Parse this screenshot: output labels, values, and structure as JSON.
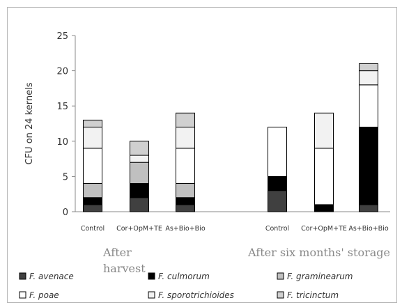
{
  "chart_data": {
    "type": "bar",
    "stacked": true,
    "ylabel": "CFU on 24 kernels",
    "ylim": [
      0,
      25
    ],
    "yticks": [
      0,
      5,
      10,
      15,
      20,
      25
    ],
    "grid": false,
    "legend_position": "bottom",
    "categories": [
      "Control",
      "Cor+OpM+TE",
      "As+Bio+Bio",
      "Control",
      "Cor+OpM+TE",
      "As+Bio+Bio"
    ],
    "groups": [
      {
        "label": "After harvest",
        "categories": [
          "Control",
          "Cor+OpM+TE",
          "As+Bio+Bio"
        ]
      },
      {
        "label": "After six months' storage",
        "categories": [
          "Control",
          "Cor+OpM+TE",
          "As+Bio+Bio"
        ]
      }
    ],
    "series": [
      {
        "name": "F. avenace",
        "color": "#404040",
        "values": [
          1,
          2,
          1,
          3,
          0,
          1
        ]
      },
      {
        "name": "F. culmorum",
        "color": "#000000",
        "values": [
          1,
          2,
          1,
          2,
          1,
          11
        ]
      },
      {
        "name": "F. graminearum",
        "color": "#c0c0c0",
        "values": [
          2,
          3,
          2,
          0,
          0,
          0
        ]
      },
      {
        "name": "F. poae",
        "color": "#ffffff",
        "values": [
          5,
          0,
          5,
          7,
          8,
          6
        ]
      },
      {
        "name": "F. sporotrichioides",
        "color": "#f2f2f2",
        "values": [
          3,
          1,
          3,
          0,
          5,
          2
        ]
      },
      {
        "name": "F. tricinctum",
        "color": "#d0d0d0",
        "values": [
          1,
          2,
          2,
          0,
          0,
          1
        ]
      }
    ]
  }
}
